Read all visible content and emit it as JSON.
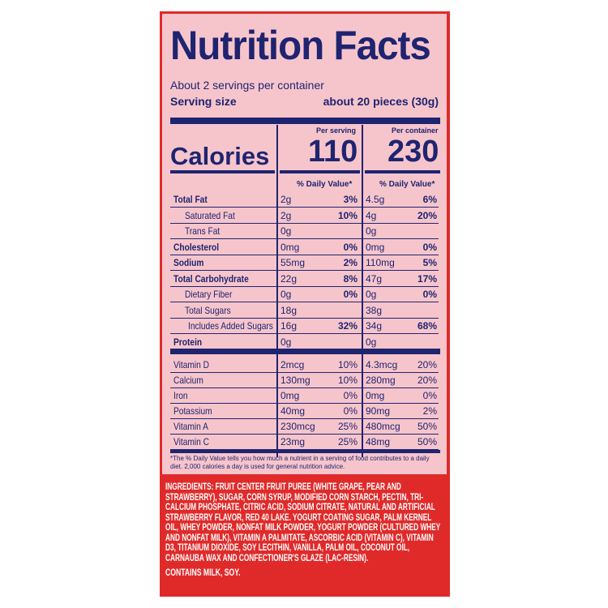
{
  "title": "Nutrition Facts",
  "servings": "About 2 servings per container",
  "serving_size_label": "Serving size",
  "serving_size_value": "about 20 pieces (30g)",
  "calories_label": "Calories",
  "per_serving_label": "Per serving",
  "per_container_label": "Per container",
  "calories_serving": "110",
  "calories_container": "230",
  "dv_label": "% Daily Value*",
  "nutrients": [
    {
      "name": "Total Fat",
      "bold": true,
      "indent": 0,
      "s_amt": "2g",
      "s_dv": "3%",
      "c_amt": "4.5g",
      "c_dv": "6%"
    },
    {
      "name": "Saturated Fat",
      "bold": false,
      "indent": 1,
      "s_amt": "2g",
      "s_dv": "10%",
      "c_amt": "4g",
      "c_dv": "20%"
    },
    {
      "name": "Trans Fat",
      "bold": false,
      "indent": 1,
      "s_amt": "0g",
      "s_dv": "",
      "c_amt": "0g",
      "c_dv": ""
    },
    {
      "name": "Cholesterol",
      "bold": true,
      "indent": 0,
      "s_amt": "0mg",
      "s_dv": "0%",
      "c_amt": "0mg",
      "c_dv": "0%"
    },
    {
      "name": "Sodium",
      "bold": true,
      "indent": 0,
      "s_amt": "55mg",
      "s_dv": "2%",
      "c_amt": "110mg",
      "c_dv": "5%"
    },
    {
      "name": "Total Carbohydrate",
      "bold": true,
      "indent": 0,
      "s_amt": "22g",
      "s_dv": "8%",
      "c_amt": "47g",
      "c_dv": "17%"
    },
    {
      "name": "Dietary Fiber",
      "bold": false,
      "indent": 1,
      "s_amt": "0g",
      "s_dv": "0%",
      "c_amt": "0g",
      "c_dv": "0%"
    },
    {
      "name": "Total Sugars",
      "bold": false,
      "indent": 1,
      "s_amt": "18g",
      "s_dv": "",
      "c_amt": "38g",
      "c_dv": ""
    },
    {
      "name": "Includes Added Sugars",
      "bold": false,
      "indent": 2,
      "s_amt": "16g",
      "s_dv": "32%",
      "c_amt": "34g",
      "c_dv": "68%"
    },
    {
      "name": "Protein",
      "bold": true,
      "indent": 0,
      "s_amt": "0g",
      "s_dv": "",
      "c_amt": "0g",
      "c_dv": ""
    }
  ],
  "vitamins": [
    {
      "name": "Vitamin D",
      "s_amt": "2mcg",
      "s_dv": "10%",
      "c_amt": "4.3mcg",
      "c_dv": "20%"
    },
    {
      "name": "Calcium",
      "s_amt": "130mg",
      "s_dv": "10%",
      "c_amt": "280mg",
      "c_dv": "20%"
    },
    {
      "name": "Iron",
      "s_amt": "0mg",
      "s_dv": "0%",
      "c_amt": "0mg",
      "c_dv": "0%"
    },
    {
      "name": "Potassium",
      "s_amt": "40mg",
      "s_dv": "0%",
      "c_amt": "90mg",
      "c_dv": "2%"
    },
    {
      "name": "Vitamin A",
      "s_amt": "230mcg",
      "s_dv": "25%",
      "c_amt": "480mcg",
      "c_dv": "50%"
    },
    {
      "name": "Vitamin C",
      "s_amt": "23mg",
      "s_dv": "25%",
      "c_amt": "48mg",
      "c_dv": "50%"
    }
  ],
  "footnote": "*The % Daily Value tells you how much a nutrient in a serving of food contributes to a daily diet. 2,000 calories a day is used for general nutrition advice.",
  "ingredients": "INGREDIENTS: FRUIT CENTER FRUIT PUREE (WHITE GRAPE, PEAR AND STRAWBERRY), SUGAR, CORN SYRUP, MODIFIED CORN STARCH, PECTIN, TRI-CALCIUM PHOSPHATE, CITRIC ACID, SODIUM CITRATE, NATURAL AND ARTIFICIAL STRAWBERRY FLAVOR, RED 40 LAKE. YOGURT COATING SUGAR, PALM KERNEL OIL, WHEY POWDER, NONFAT MILK POWDER, YOGURT POWDER (CULTURED WHEY AND NONFAT MILK), VITAMIN A PALMITATE, ASCORBIC ACID (VITAMIN C), VITAMIN D3, TITANIUM DIOXIDE, SOY LECITHIN, VANILLA, PALM OIL, COCONUT OIL, CARNAUBA WAX AND CONFECTIONER'S GLAZE (LAC-RESIN).",
  "contains": "CONTAINS MILK, SOY.",
  "colors": {
    "package_red": "#e02a2a",
    "label_pink": "#f6c5cb",
    "ink_navy": "#1f2470"
  }
}
